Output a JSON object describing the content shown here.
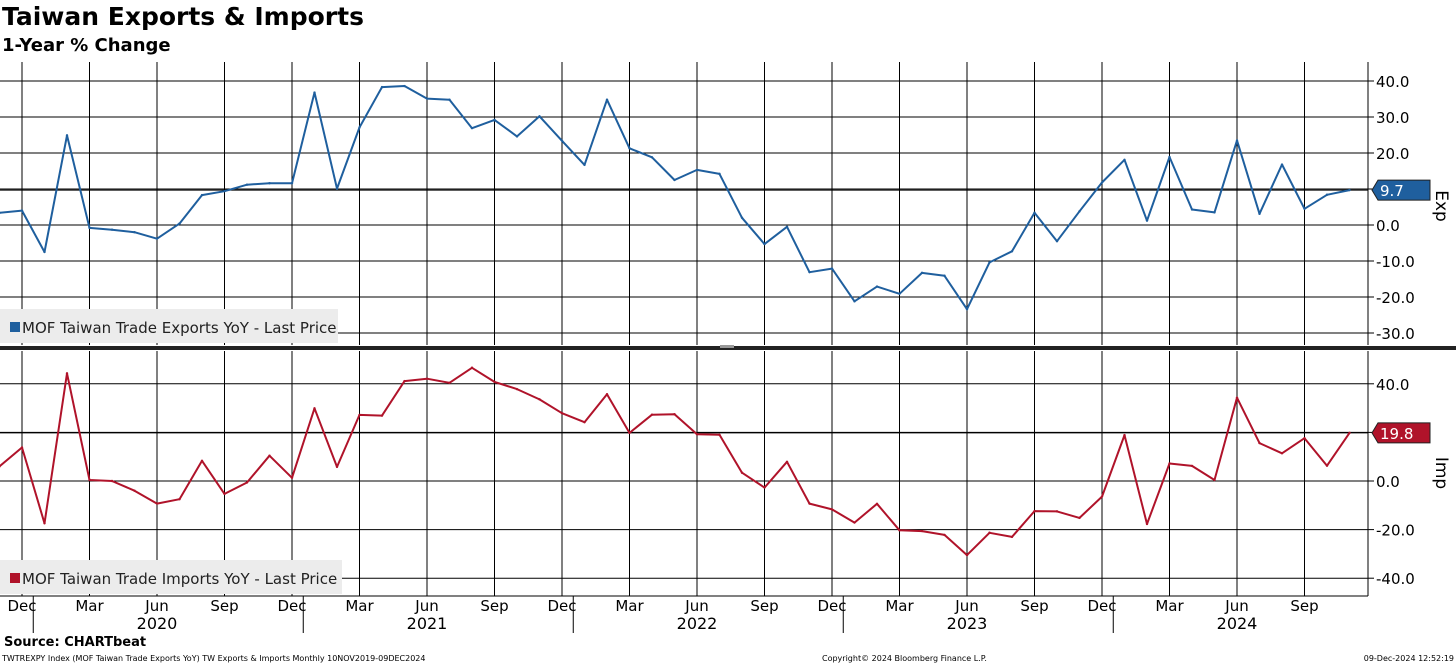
{
  "header": {
    "title": "Taiwan Exports & Imports",
    "subtitle": "1-Year % Change"
  },
  "footer": {
    "source": "Source: CHARTbeat",
    "left": "TWTREXPY Index (MOF Taiwan Trade Exports YoY) TW Exports & Imports  Monthly 10NOV2019-09DEC2024",
    "middle": "Copyright© 2024 Bloomberg Finance L.P.",
    "right": "09-Dec-2024 12:52:19"
  },
  "colors": {
    "exports": "#1f5f9e",
    "imports": "#b0132a",
    "grid": "#000000"
  },
  "chart_data": [
    {
      "type": "line",
      "axis_label": "Exp",
      "ylim": [
        -33,
        44
      ],
      "yticks": [
        40,
        30,
        20,
        10,
        0,
        -10,
        -20,
        -30
      ],
      "ytick_labels": [
        "40.0",
        "30.0",
        "20.0",
        "",
        "0.0",
        "-10.0",
        "-20.0",
        "-30.0"
      ],
      "highlight_value": 9.7,
      "highlight_label": "9.7",
      "legend": "MOF Taiwan Trade Exports YoY - Last Price",
      "legend_position": "bottom-left",
      "grid": true,
      "x": [
        "2019-11",
        "2019-12",
        "2020-01",
        "2020-02",
        "2020-03",
        "2020-04",
        "2020-05",
        "2020-06",
        "2020-07",
        "2020-08",
        "2020-09",
        "2020-10",
        "2020-11",
        "2020-12",
        "2021-01",
        "2021-02",
        "2021-03",
        "2021-04",
        "2021-05",
        "2021-06",
        "2021-07",
        "2021-08",
        "2021-09",
        "2021-10",
        "2021-11",
        "2021-12",
        "2022-01",
        "2022-02",
        "2022-03",
        "2022-04",
        "2022-05",
        "2022-06",
        "2022-07",
        "2022-08",
        "2022-09",
        "2022-10",
        "2022-11",
        "2022-12",
        "2023-01",
        "2023-02",
        "2023-03",
        "2023-04",
        "2023-05",
        "2023-06",
        "2023-07",
        "2023-08",
        "2023-09",
        "2023-10",
        "2023-11",
        "2023-12",
        "2024-01",
        "2024-02",
        "2024-03",
        "2024-04",
        "2024-05",
        "2024-06",
        "2024-07",
        "2024-08",
        "2024-09",
        "2024-10",
        "2024-11"
      ],
      "series": [
        {
          "name": "MOF Taiwan Trade Exports YoY",
          "values": [
            3.4,
            4.0,
            -7.5,
            24.9,
            -0.8,
            -1.3,
            -2.0,
            -3.8,
            0.4,
            8.3,
            9.4,
            11.2,
            11.6,
            11.6,
            36.8,
            10.1,
            27.1,
            38.3,
            38.6,
            35.1,
            34.8,
            26.9,
            29.2,
            24.6,
            30.2,
            23.4,
            16.7,
            34.8,
            21.3,
            18.8,
            12.5,
            15.3,
            14.2,
            2.0,
            -5.3,
            -0.5,
            -13.1,
            -12.1,
            -21.2,
            -17.1,
            -19.1,
            -13.3,
            -14.1,
            -23.4,
            -10.4,
            -7.3,
            3.4,
            -4.5,
            3.8,
            11.8,
            18.1,
            1.2,
            18.9,
            4.3,
            3.5,
            23.5,
            3.1,
            16.8,
            4.5,
            8.4,
            9.7
          ]
        }
      ]
    },
    {
      "type": "line",
      "axis_label": "Imp",
      "ylim": [
        -45,
        50
      ],
      "yticks": [
        40,
        20,
        0,
        -20,
        -40
      ],
      "ytick_labels": [
        "40.0",
        "",
        "0.0",
        "-20.0",
        "-40.0"
      ],
      "highlight_value": 19.8,
      "highlight_label": "19.8",
      "legend": "MOF Taiwan Trade Imports YoY - Last Price",
      "legend_position": "bottom-left",
      "grid": true,
      "x": [
        "2019-11",
        "2019-12",
        "2020-01",
        "2020-02",
        "2020-03",
        "2020-04",
        "2020-05",
        "2020-06",
        "2020-07",
        "2020-08",
        "2020-09",
        "2020-10",
        "2020-11",
        "2020-12",
        "2021-01",
        "2021-02",
        "2021-03",
        "2021-04",
        "2021-05",
        "2021-06",
        "2021-07",
        "2021-08",
        "2021-09",
        "2021-10",
        "2021-11",
        "2021-12",
        "2022-01",
        "2022-02",
        "2022-03",
        "2022-04",
        "2022-05",
        "2022-06",
        "2022-07",
        "2022-08",
        "2022-09",
        "2022-10",
        "2022-11",
        "2022-12",
        "2023-01",
        "2023-02",
        "2023-03",
        "2023-04",
        "2023-05",
        "2023-06",
        "2023-07",
        "2023-08",
        "2023-09",
        "2023-10",
        "2023-11",
        "2023-12",
        "2024-01",
        "2024-02",
        "2024-03",
        "2024-04",
        "2024-05",
        "2024-06",
        "2024-07",
        "2024-08",
        "2024-09",
        "2024-10",
        "2024-11"
      ],
      "series": [
        {
          "name": "MOF Taiwan Trade Imports YoY",
          "values": [
            6.0,
            13.8,
            -17.4,
            44.3,
            0.4,
            0.0,
            -4.0,
            -9.3,
            -7.5,
            8.3,
            -5.3,
            -0.6,
            10.4,
            1.3,
            29.9,
            5.8,
            27.2,
            26.9,
            41.1,
            42.1,
            40.4,
            46.6,
            40.8,
            37.8,
            33.6,
            27.9,
            24.2,
            35.7,
            19.8,
            27.3,
            27.5,
            19.2,
            19.0,
            3.4,
            -2.7,
            7.9,
            -9.3,
            -11.7,
            -17.1,
            -9.4,
            -20.3,
            -20.6,
            -22.2,
            -30.5,
            -21.3,
            -23.0,
            -12.4,
            -12.5,
            -15.2,
            -6.4,
            18.9,
            -17.7,
            7.2,
            6.2,
            0.4,
            34.3,
            15.6,
            11.4,
            17.6,
            6.3,
            19.8
          ]
        }
      ]
    }
  ],
  "x_axis": {
    "month_labels": [
      "Dec",
      "Mar",
      "Jun",
      "Sep",
      "Dec",
      "Mar",
      "Jun",
      "Sep",
      "Dec",
      "Mar",
      "Jun",
      "Sep",
      "Dec",
      "Mar",
      "Jun",
      "Sep",
      "Dec",
      "Mar",
      "Jun",
      "Sep"
    ],
    "month_dates": [
      "2019-12",
      "2020-03",
      "2020-06",
      "2020-09",
      "2020-12",
      "2021-03",
      "2021-06",
      "2021-09",
      "2021-12",
      "2022-03",
      "2022-06",
      "2022-09",
      "2022-12",
      "2023-03",
      "2023-06",
      "2023-09",
      "2023-12",
      "2024-03",
      "2024-06",
      "2024-09"
    ],
    "year_labels": [
      "2020",
      "2021",
      "2022",
      "2023",
      "2024"
    ],
    "year_centers": [
      "2020-06",
      "2021-06",
      "2022-06",
      "2023-06",
      "2024-06"
    ]
  }
}
